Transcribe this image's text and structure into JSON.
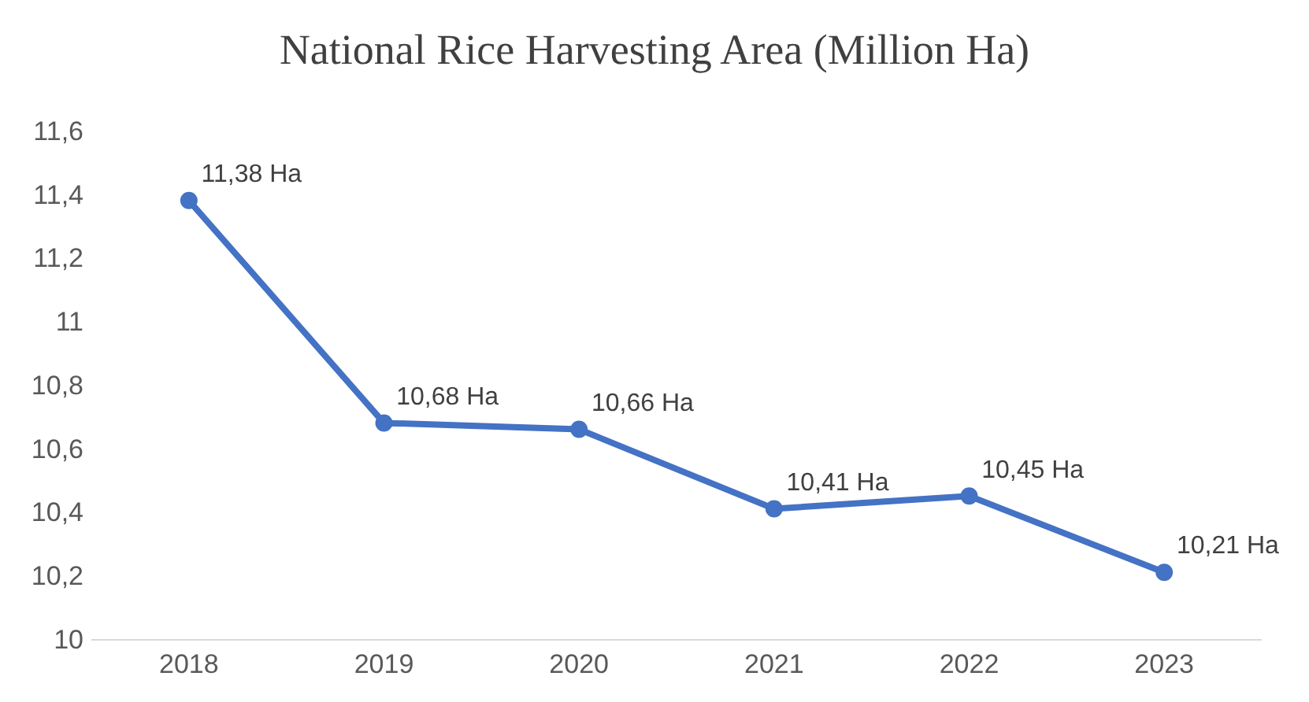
{
  "chart_data": {
    "type": "line",
    "title": "National Rice Harvesting Area (Million Ha)",
    "categories": [
      "2018",
      "2019",
      "2020",
      "2021",
      "2022",
      "2023"
    ],
    "series": [
      {
        "color": "#4472c4",
        "values": [
          11.38,
          10.68,
          10.66,
          10.41,
          10.45,
          10.21
        ],
        "value_labels": [
          "11,38 Ha",
          "10,68 Ha",
          "10,66 Ha",
          "10,41 Ha",
          "10,45 Ha",
          "10,21 Ha"
        ]
      }
    ],
    "ylim": [
      10,
      11.6
    ],
    "yticks": [
      {
        "value": 10,
        "label": "10"
      },
      {
        "value": 10.2,
        "label": "10,2"
      },
      {
        "value": 10.4,
        "label": "10,4"
      },
      {
        "value": 10.6,
        "label": "10,6"
      },
      {
        "value": 10.8,
        "label": "10,8"
      },
      {
        "value": 11,
        "label": "11"
      },
      {
        "value": 11.2,
        "label": "11,2"
      },
      {
        "value": 11.4,
        "label": "11,4"
      },
      {
        "value": 11.6,
        "label": "11,6"
      }
    ],
    "grid": false,
    "marker": "circle",
    "line_style": "solid"
  }
}
